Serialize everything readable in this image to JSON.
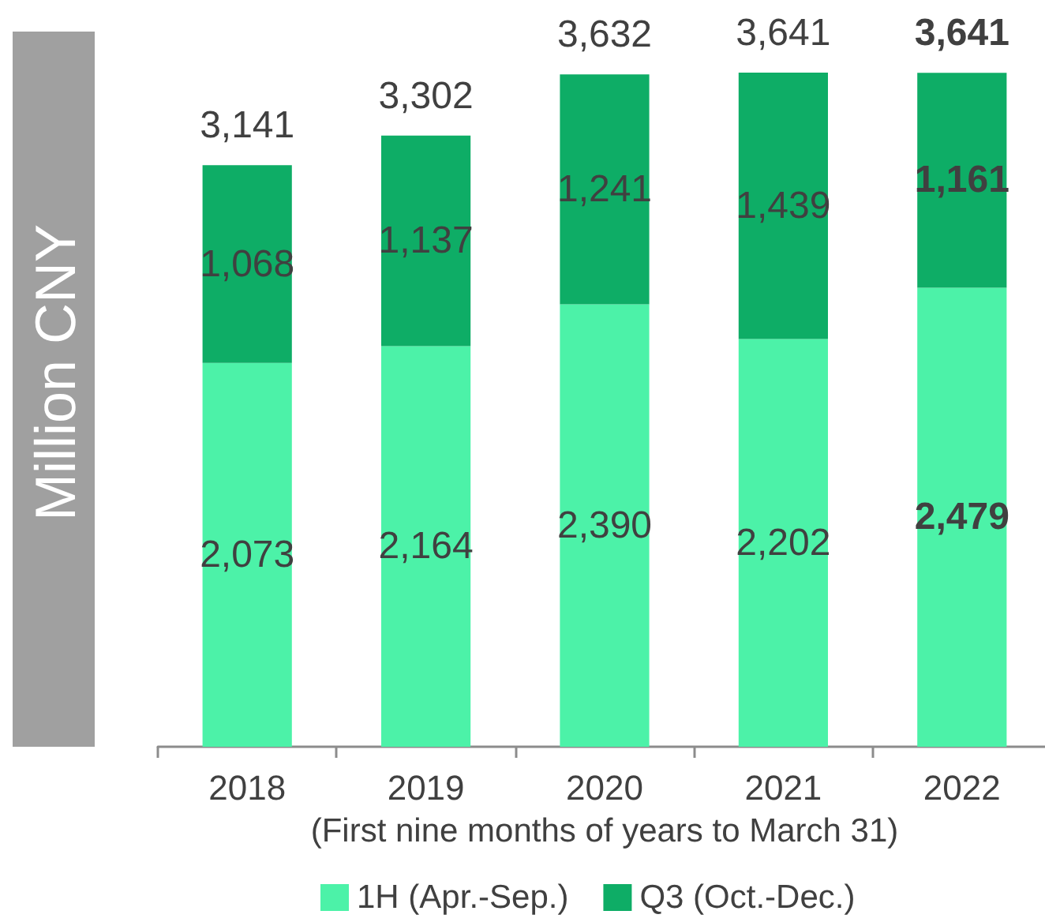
{
  "chart_data": {
    "type": "bar",
    "stacked": true,
    "xlabel": "(First nine months of years to March 31)",
    "ylabel": "Million CNY",
    "categories": [
      "2018",
      "2019",
      "2020",
      "2021",
      "2022"
    ],
    "series": [
      {
        "name": "1H (Apr.-Sep.)",
        "color": "#4cf2a8",
        "values": [
          2073,
          2164,
          2390,
          2202,
          2479
        ],
        "value_labels": [
          "2,073",
          "2,164",
          "2,390",
          "2,202",
          "2,479"
        ]
      },
      {
        "name": "Q3 (Oct.-Dec.)",
        "color": "#0ead66",
        "values": [
          1068,
          1137,
          1241,
          1439,
          1161
        ],
        "value_labels": [
          "1,068",
          "1,137",
          "1,241",
          "1,439",
          "1,161"
        ]
      }
    ],
    "totals": [
      "3,141",
      "3,302",
      "3,632",
      "3,641",
      "3,641"
    ],
    "legend": "bottom"
  }
}
